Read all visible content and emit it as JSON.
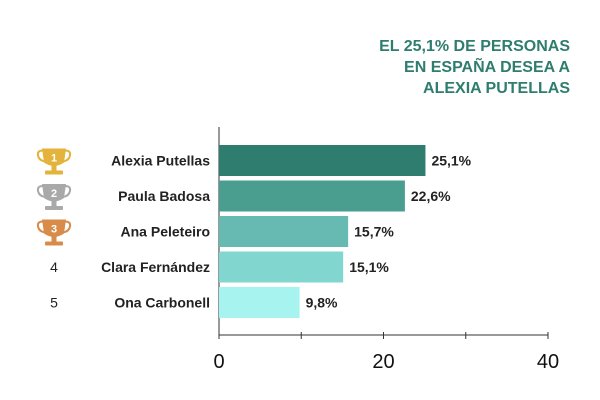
{
  "title_lines": [
    "EL 25,1% DE PERSONAS",
    "EN ESPAÑA DESEA A",
    "ALEXIA PUTELLAS"
  ],
  "chart_data": {
    "type": "bar",
    "orientation": "horizontal",
    "categories": [
      "Alexia Putellas",
      "Paula Badosa",
      "Ana Peleteiro",
      "Clara Fernández",
      "Ona Carbonell"
    ],
    "values": [
      25.1,
      22.6,
      15.7,
      15.1,
      9.8
    ],
    "value_labels": [
      "25,1%",
      "22,6%",
      "15,7%",
      "15,1%",
      "9,8%"
    ],
    "ranks": [
      "1",
      "2",
      "3",
      "4",
      "5"
    ],
    "rank_icons": [
      "gold-trophy-icon",
      "silver-trophy-icon",
      "bronze-trophy-icon",
      "",
      ""
    ],
    "bar_colors": [
      "#2e7d6e",
      "#4a9e90",
      "#66bab2",
      "#82d6d0",
      "#a7f3ef"
    ],
    "trophy_colors": {
      "gold": "#e3b33b",
      "silver": "#a9a9a9",
      "bronze": "#d98b4a"
    },
    "xlim": [
      0,
      40
    ],
    "xticks": [
      0,
      20,
      40
    ],
    "grid": false
  }
}
